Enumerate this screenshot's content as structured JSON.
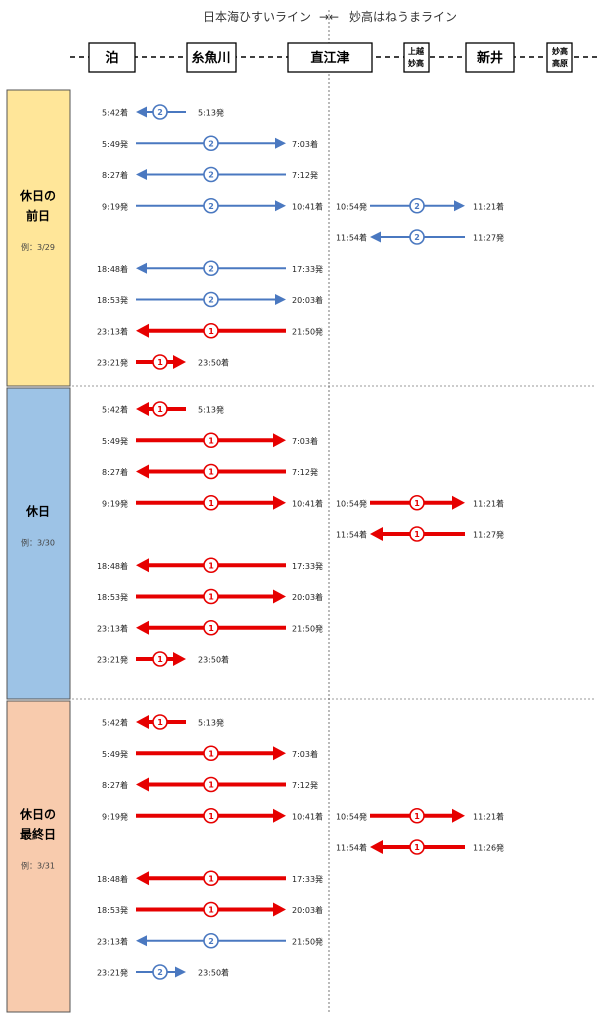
{
  "header": {
    "left_line": "日本海ひすいライン",
    "arrows": "→←",
    "right_line": "妙高はねうまライン"
  },
  "stations": [
    {
      "id": "tomari",
      "lines": [
        "泊"
      ]
    },
    {
      "id": "itoigawa",
      "lines": [
        "糸魚川"
      ]
    },
    {
      "id": "naoetsu",
      "lines": [
        "直江津"
      ]
    },
    {
      "id": "joetsu-myoko",
      "lines": [
        "上越",
        "妙高"
      ]
    },
    {
      "id": "arai",
      "lines": [
        "新井"
      ]
    },
    {
      "id": "myoko-kogen",
      "lines": [
        "妙高",
        "高原"
      ]
    }
  ],
  "colors": {
    "blue": "#4a78c0",
    "red": "#e60000",
    "yellow_panel": "#ffe699",
    "blue_panel": "#9dc3e6",
    "orange_panel": "#f8cbad"
  },
  "sections": [
    {
      "title_lines": [
        "休日の",
        "前日"
      ],
      "example": "例：3/29",
      "panel_color": "#ffe699",
      "rows": [
        [
          {
            "segment": "tomari-itoigawa",
            "dir": "left",
            "count": "2",
            "color": "blue",
            "left_time": "5:42着",
            "right_time": "5:13発"
          }
        ],
        [
          {
            "segment": "tomari-naoetsu",
            "dir": "right",
            "count": "2",
            "color": "blue",
            "left_time": "5:49発",
            "right_time": "7:03着"
          }
        ],
        [
          {
            "segment": "tomari-naoetsu",
            "dir": "left",
            "count": "2",
            "color": "blue",
            "left_time": "8:27着",
            "right_time": "7:12発"
          }
        ],
        [
          {
            "segment": "tomari-naoetsu",
            "dir": "right",
            "count": "2",
            "color": "blue",
            "left_time": "9:19発",
            "right_time": "10:41着"
          },
          {
            "segment": "naoetsu-arai",
            "dir": "right",
            "count": "2",
            "color": "blue",
            "left_time": "10:54発",
            "right_time": "11:21着"
          }
        ],
        [
          {
            "segment": "naoetsu-arai",
            "dir": "left",
            "count": "2",
            "color": "blue",
            "left_time": "11:54着",
            "right_time": "11:27発"
          }
        ],
        [
          {
            "segment": "tomari-naoetsu",
            "dir": "left",
            "count": "2",
            "color": "blue",
            "left_time": "18:48着",
            "right_time": "17:33発"
          }
        ],
        [
          {
            "segment": "tomari-naoetsu",
            "dir": "right",
            "count": "2",
            "color": "blue",
            "left_time": "18:53発",
            "right_time": "20:03着"
          }
        ],
        [
          {
            "segment": "tomari-naoetsu",
            "dir": "left",
            "count": "1",
            "color": "red",
            "left_time": "23:13着",
            "right_time": "21:50発"
          }
        ],
        [
          {
            "segment": "tomari-itoigawa",
            "dir": "right",
            "count": "1",
            "color": "red",
            "left_time": "23:21発",
            "right_time": "23:50着"
          }
        ]
      ]
    },
    {
      "title_lines": [
        "休日"
      ],
      "example": "例：3/30",
      "panel_color": "#9dc3e6",
      "rows": [
        [
          {
            "segment": "tomari-itoigawa",
            "dir": "left",
            "count": "1",
            "color": "red",
            "left_time": "5:42着",
            "right_time": "5:13発"
          }
        ],
        [
          {
            "segment": "tomari-naoetsu",
            "dir": "right",
            "count": "1",
            "color": "red",
            "left_time": "5:49発",
            "right_time": "7:03着"
          }
        ],
        [
          {
            "segment": "tomari-naoetsu",
            "dir": "left",
            "count": "1",
            "color": "red",
            "left_time": "8:27着",
            "right_time": "7:12発"
          }
        ],
        [
          {
            "segment": "tomari-naoetsu",
            "dir": "right",
            "count": "1",
            "color": "red",
            "left_time": "9:19発",
            "right_time": "10:41着"
          },
          {
            "segment": "naoetsu-arai",
            "dir": "right",
            "count": "1",
            "color": "red",
            "left_time": "10:54発",
            "right_time": "11:21着"
          }
        ],
        [
          {
            "segment": "naoetsu-arai",
            "dir": "left",
            "count": "1",
            "color": "red",
            "left_time": "11:54着",
            "right_time": "11:27発"
          }
        ],
        [
          {
            "segment": "tomari-naoetsu",
            "dir": "left",
            "count": "1",
            "color": "red",
            "left_time": "18:48着",
            "right_time": "17:33発"
          }
        ],
        [
          {
            "segment": "tomari-naoetsu",
            "dir": "right",
            "count": "1",
            "color": "red",
            "left_time": "18:53発",
            "right_time": "20:03着"
          }
        ],
        [
          {
            "segment": "tomari-naoetsu",
            "dir": "left",
            "count": "1",
            "color": "red",
            "left_time": "23:13着",
            "right_time": "21:50発"
          }
        ],
        [
          {
            "segment": "tomari-itoigawa",
            "dir": "right",
            "count": "1",
            "color": "red",
            "left_time": "23:21発",
            "right_time": "23:50着"
          }
        ]
      ]
    },
    {
      "title_lines": [
        "休日の",
        "最終日"
      ],
      "example": "例：3/31",
      "panel_color": "#f8cbad",
      "rows": [
        [
          {
            "segment": "tomari-itoigawa",
            "dir": "left",
            "count": "1",
            "color": "red",
            "left_time": "5:42着",
            "right_time": "5:13発"
          }
        ],
        [
          {
            "segment": "tomari-naoetsu",
            "dir": "right",
            "count": "1",
            "color": "red",
            "left_time": "5:49発",
            "right_time": "7:03着"
          }
        ],
        [
          {
            "segment": "tomari-naoetsu",
            "dir": "left",
            "count": "1",
            "color": "red",
            "left_time": "8:27着",
            "right_time": "7:12発"
          }
        ],
        [
          {
            "segment": "tomari-naoetsu",
            "dir": "right",
            "count": "1",
            "color": "red",
            "left_time": "9:19発",
            "right_time": "10:41着"
          },
          {
            "segment": "naoetsu-arai",
            "dir": "right",
            "count": "1",
            "color": "red",
            "left_time": "10:54発",
            "right_time": "11:21着"
          }
        ],
        [
          {
            "segment": "naoetsu-arai",
            "dir": "left",
            "count": "1",
            "color": "red",
            "left_time": "11:54着",
            "right_time": "11:26発"
          }
        ],
        [
          {
            "segment": "tomari-naoetsu",
            "dir": "left",
            "count": "1",
            "color": "red",
            "left_time": "18:48着",
            "right_time": "17:33発"
          }
        ],
        [
          {
            "segment": "tomari-naoetsu",
            "dir": "right",
            "count": "1",
            "color": "red",
            "left_time": "18:53発",
            "right_time": "20:03着"
          }
        ],
        [
          {
            "segment": "tomari-naoetsu",
            "dir": "left",
            "count": "2",
            "color": "blue",
            "left_time": "23:13着",
            "right_time": "21:50発"
          }
        ],
        [
          {
            "segment": "tomari-itoigawa",
            "dir": "right",
            "count": "2",
            "color": "blue",
            "left_time": "23:21発",
            "right_time": "23:50着"
          }
        ]
      ]
    }
  ]
}
